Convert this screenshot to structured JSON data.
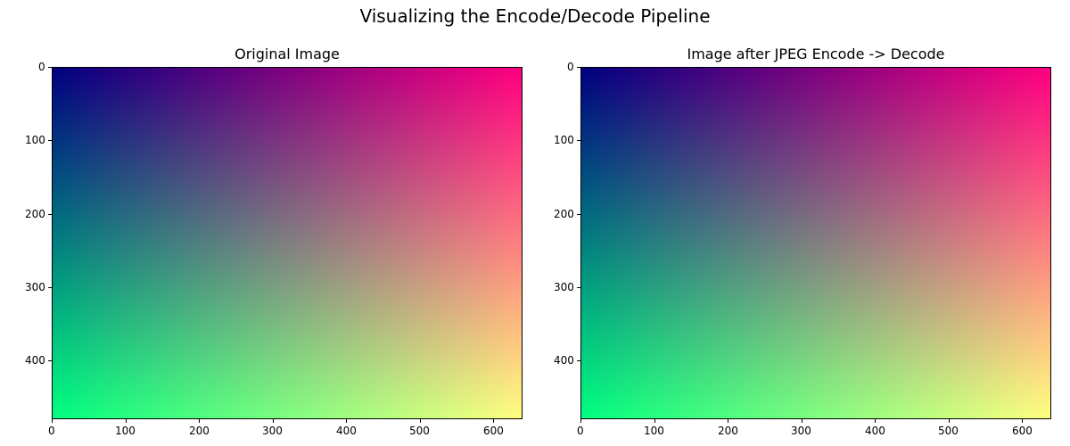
{
  "title": "Visualizing the Encode/Decode Pipeline",
  "chart_data": [
    {
      "type": "heatmap",
      "title": "Original Image",
      "image_width": 640,
      "image_height": 480,
      "xlim": [
        0,
        640
      ],
      "ylim": [
        480,
        0
      ],
      "xticks": [
        0,
        100,
        200,
        300,
        400,
        500,
        600
      ],
      "yticks": [
        0,
        100,
        200,
        300,
        400
      ],
      "gradient_colors": {
        "top_left": "#000080",
        "top_right": "#ff0080",
        "bottom_left": "#00ff80",
        "bottom_right": "#ffff80"
      }
    },
    {
      "type": "heatmap",
      "title": "Image after JPEG Encode -> Decode",
      "image_width": 640,
      "image_height": 480,
      "xlim": [
        0,
        640
      ],
      "ylim": [
        480,
        0
      ],
      "xticks": [
        0,
        100,
        200,
        300,
        400,
        500,
        600
      ],
      "yticks": [
        0,
        100,
        200,
        300,
        400
      ],
      "gradient_colors": {
        "top_left": "#000080",
        "top_right": "#ff0080",
        "bottom_left": "#00ff80",
        "bottom_right": "#ffff80"
      }
    }
  ]
}
